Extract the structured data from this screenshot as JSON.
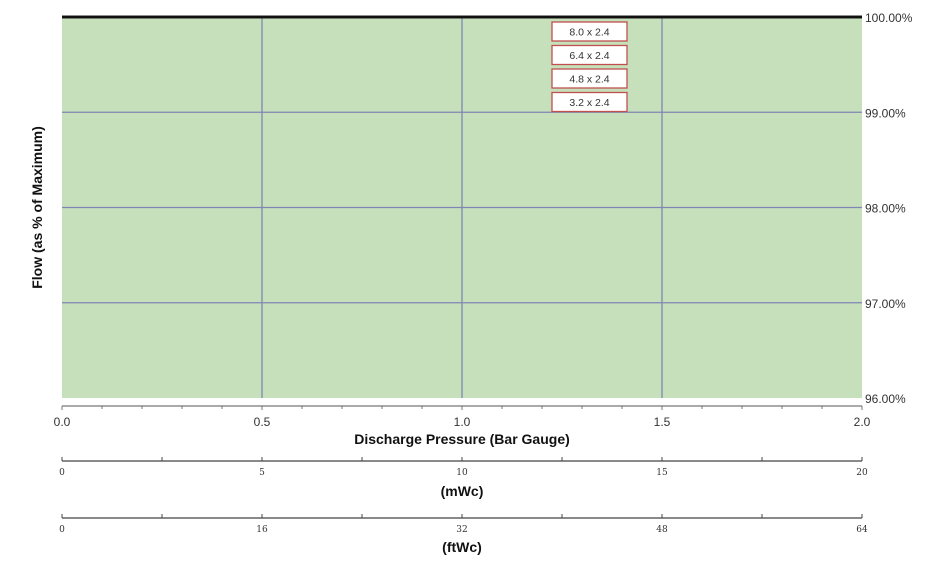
{
  "chart_data": {
    "type": "line",
    "title": "",
    "ylabel": "Flow (as % of Maximum)",
    "ylim": [
      96,
      100
    ],
    "y_ticks": [
      "96.00%",
      "97.00%",
      "98.00%",
      "99.00%",
      "100.00%"
    ],
    "y_tick_values": [
      96,
      97,
      98,
      99,
      100
    ],
    "xlabel": "Discharge Pressure (Bar Gauge)",
    "xlim": [
      0,
      2
    ],
    "x_ticks": [
      "0.0",
      "0.5",
      "1.0",
      "1.5",
      "2.0"
    ],
    "x_tick_values": [
      0,
      0.5,
      1,
      1.5,
      2
    ],
    "secondary_axes": [
      {
        "label": "(mWc)",
        "range": [
          0,
          20
        ],
        "ticks": [
          "0",
          "5",
          "10",
          "15",
          "20"
        ],
        "tick_values": [
          0,
          5,
          10,
          15,
          20
        ]
      },
      {
        "label": "(ftWc)",
        "range": [
          0,
          64
        ],
        "ticks": [
          "0",
          "16",
          "32",
          "48",
          "64"
        ],
        "tick_values": [
          0,
          16,
          32,
          48,
          64
        ]
      }
    ],
    "series": [
      {
        "name": "8.0 x 2.4",
        "x": [
          0,
          2
        ],
        "y": [
          100,
          100
        ]
      },
      {
        "name": "6.4 x 2.4",
        "x": [
          0,
          2
        ],
        "y": [
          100,
          100
        ]
      },
      {
        "name": "4.8 x 2.4",
        "x": [
          0,
          2
        ],
        "y": [
          100,
          100
        ]
      },
      {
        "name": "3.2 x 2.4",
        "x": [
          0,
          2
        ],
        "y": [
          100,
          100
        ]
      }
    ],
    "grid": true,
    "legend_position": "top-center",
    "colors": {
      "plot_background": "#c6e0bb",
      "gridline": "#7f86b3",
      "series_line": "#111111",
      "legend_border": "#c0504d"
    }
  }
}
